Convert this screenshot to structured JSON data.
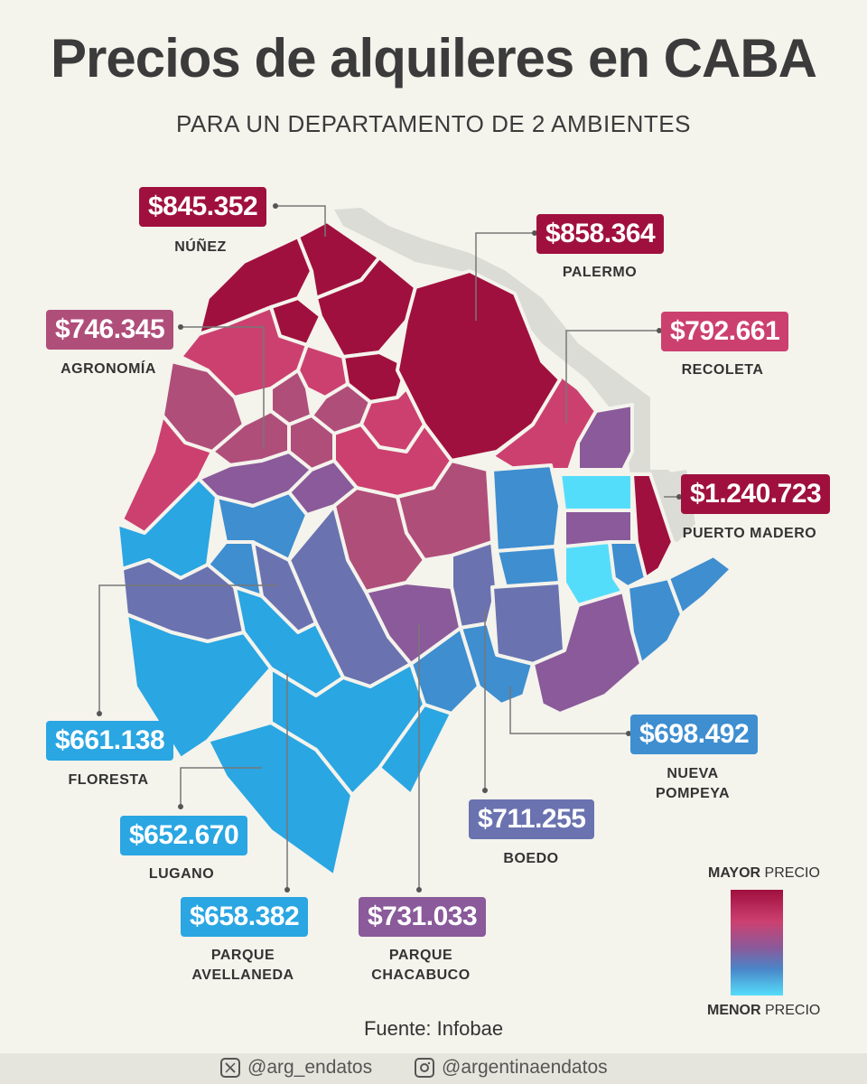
{
  "title": "Precios de alquileres en CABA",
  "subtitle": "PARA UN DEPARTAMENTO DE 2 AMBIENTES",
  "colors": {
    "max": "#a0103f",
    "high": "#cc4070",
    "mid_high": "#b04e7a",
    "mid": "#8a5a9a",
    "mid_low": "#6a72b0",
    "low": "#3e8ed0",
    "lowest": "#2aa6e2",
    "min": "#54ddfb",
    "background": "#f4f3ec"
  },
  "neighborhoods": [
    {
      "name": "NÚÑEZ",
      "name2": "",
      "price": "$845.352",
      "color": "#a0103f"
    },
    {
      "name": "PALERMO",
      "name2": "",
      "price": "$858.364",
      "color": "#a0103f"
    },
    {
      "name": "AGRONOMÍA",
      "name2": "",
      "price": "$746.345",
      "color": "#b04e7a"
    },
    {
      "name": "RECOLETA",
      "name2": "",
      "price": "$792.661",
      "color": "#cc4070"
    },
    {
      "name": "PUERTO MADERO",
      "name2": "",
      "price": "$1.240.723",
      "color": "#a0103f"
    },
    {
      "name": "FLORESTA",
      "name2": "",
      "price": "$661.138",
      "color": "#2aa6e2"
    },
    {
      "name": "NUEVA",
      "name2": "POMPEYA",
      "price": "$698.492",
      "color": "#3e8ed0"
    },
    {
      "name": "LUGANO",
      "name2": "",
      "price": "$652.670",
      "color": "#2aa6e2"
    },
    {
      "name": "BOEDO",
      "name2": "",
      "price": "$711.255",
      "color": "#6a72b0"
    },
    {
      "name": "PARQUE",
      "name2": "AVELLANEDA",
      "price": "$658.382",
      "color": "#2aa6e2"
    },
    {
      "name": "PARQUE",
      "name2": "CHACABUCO",
      "price": "$731.033",
      "color": "#8a5a9a"
    }
  ],
  "legend": {
    "top_bold": "MAYOR",
    "top_rest": " PRECIO",
    "bottom_bold": "MENOR",
    "bottom_rest": " PRECIO"
  },
  "source": "Fuente: Infobae",
  "social": {
    "twitter": "@arg_endatos",
    "twitter_icon": "x-logo-icon",
    "instagram": "@argentinaendatos",
    "instagram_icon": "instagram-icon"
  }
}
